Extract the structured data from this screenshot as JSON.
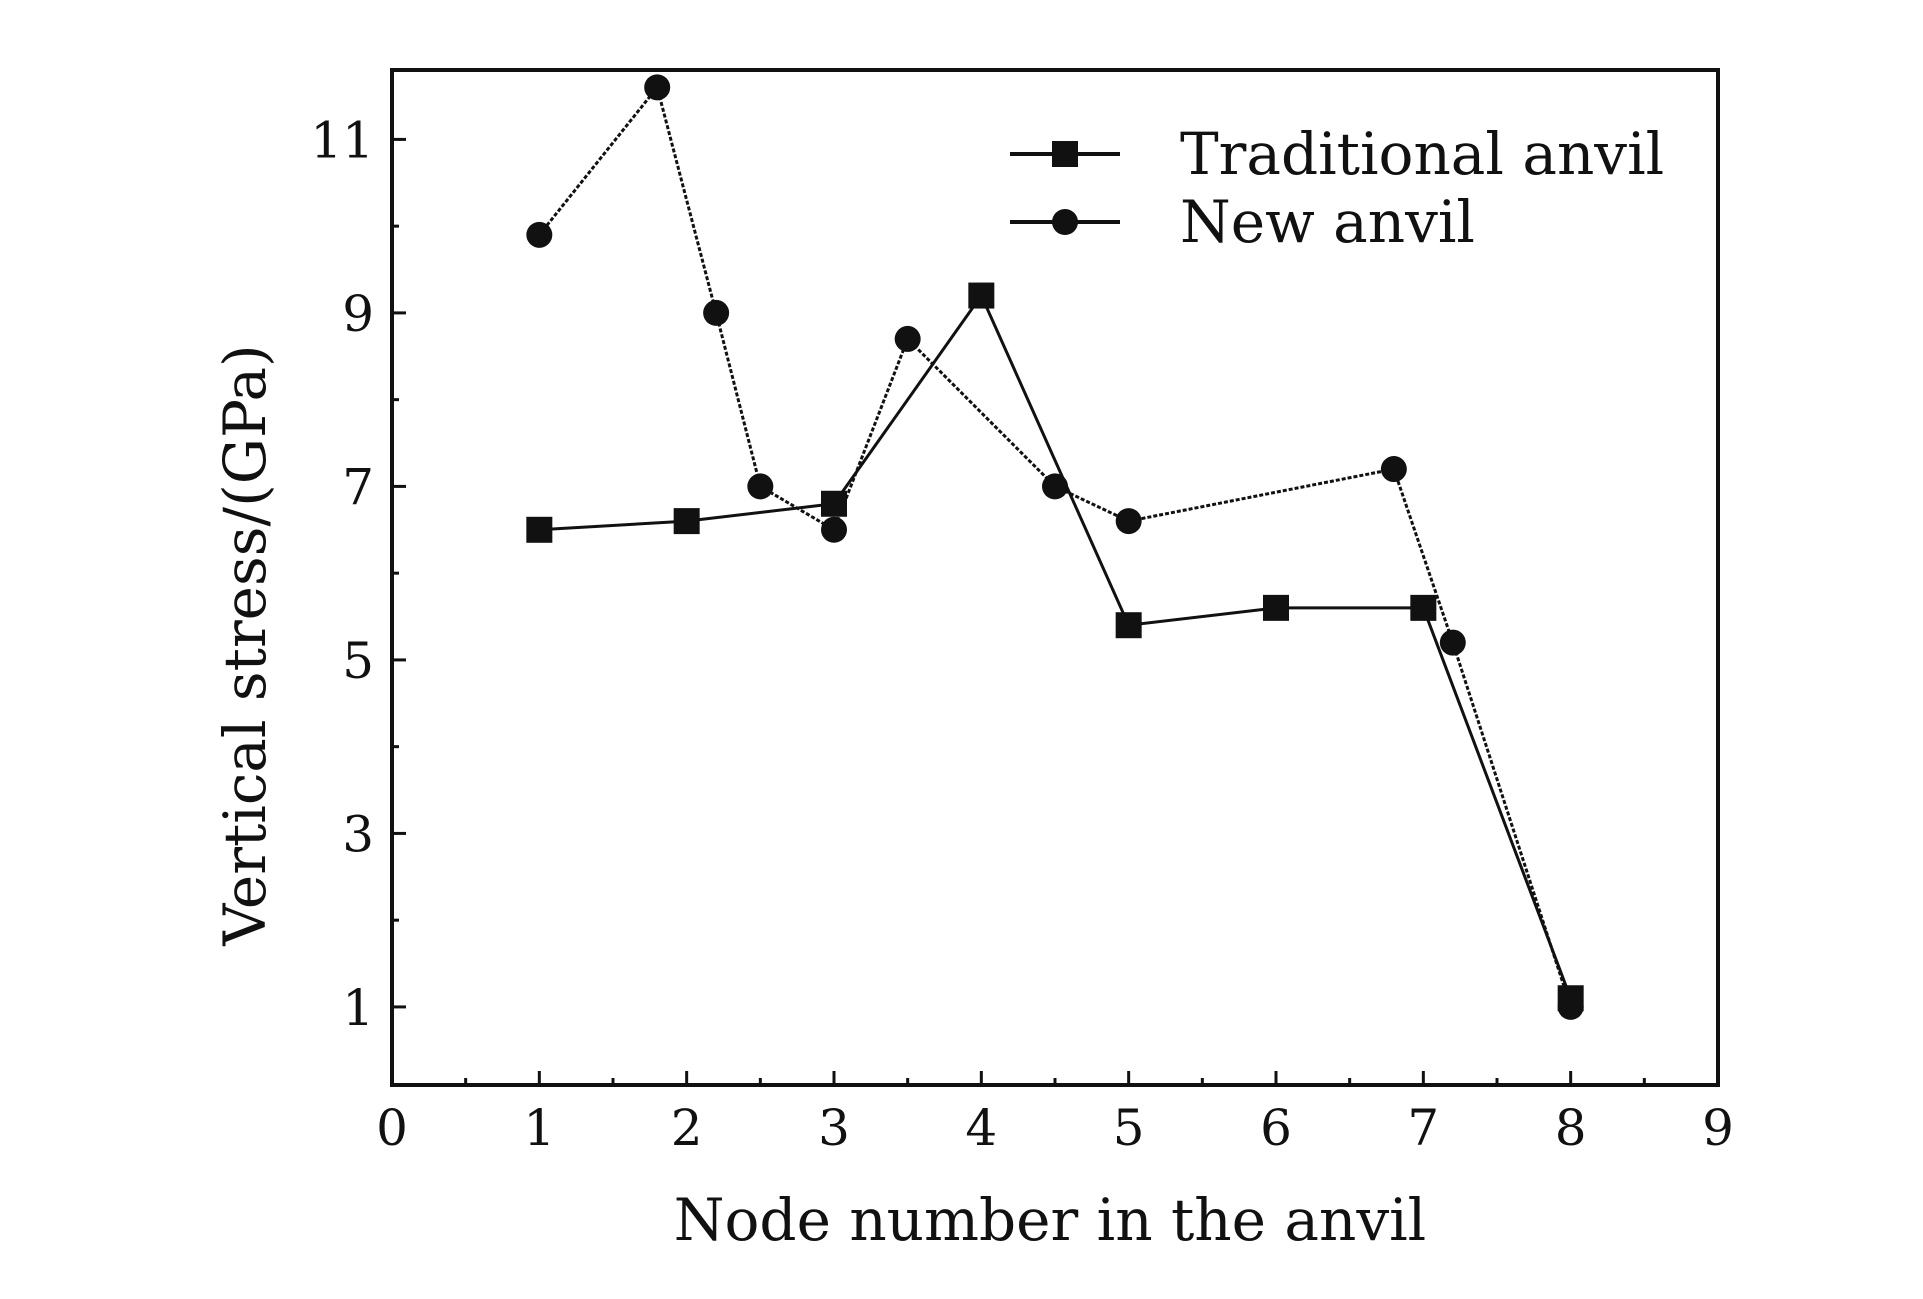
{
  "chart_data": {
    "type": "line",
    "title": "",
    "xlabel": "Node number in the anvil",
    "ylabel": "Vertical stress/(GPa)",
    "xlim": [
      0,
      9
    ],
    "ylim": [
      0.1,
      11.8
    ],
    "xticks": [
      0,
      1,
      2,
      3,
      4,
      5,
      6,
      7,
      8,
      9
    ],
    "yticks": [
      1,
      3,
      5,
      7,
      9,
      11
    ],
    "grid": false,
    "legend_position": "top-right",
    "series": [
      {
        "name": "Traditional anvil",
        "marker": "square",
        "color": "#111111",
        "x": [
          1,
          2,
          3,
          4,
          5,
          6,
          7,
          8
        ],
        "y": [
          6.5,
          6.6,
          6.8,
          9.2,
          5.4,
          5.6,
          5.6,
          1.1
        ]
      },
      {
        "name": "New anvil",
        "marker": "circle",
        "color": "#111111",
        "x": [
          1,
          1.8,
          2.2,
          2.5,
          3,
          3.5,
          4.5,
          5,
          6.8,
          7.2,
          8
        ],
        "y": [
          9.9,
          11.6,
          9.0,
          7.0,
          6.5,
          8.7,
          7.0,
          6.6,
          7.2,
          5.2,
          1.0
        ]
      }
    ]
  }
}
